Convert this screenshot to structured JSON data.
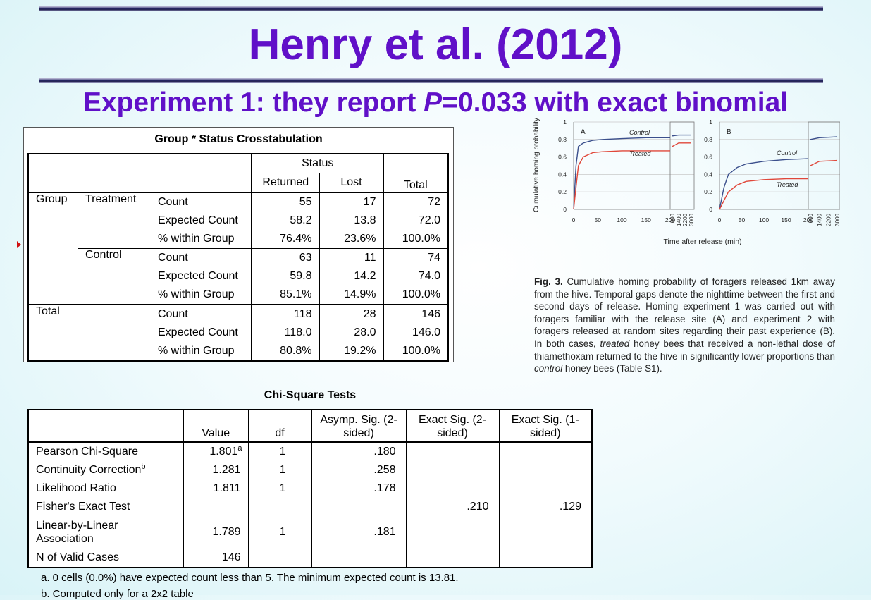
{
  "title": "Henry et al.  (2012)",
  "subtitle": {
    "pre": "Experiment 1: they report  ",
    "p_italic": "P",
    "post": "=0.033 with exact binomial"
  },
  "crosstab": {
    "title": "Group * Status Crosstabulation",
    "status_header": "Status",
    "columns": [
      "Returned",
      "Lost",
      "Total"
    ],
    "group_label": "Group",
    "total_label": "Total",
    "groups": [
      {
        "name": "Treatment",
        "rows": [
          {
            "stat": "Count",
            "values": [
              "55",
              "17",
              "72"
            ]
          },
          {
            "stat": "Expected Count",
            "values": [
              "58.2",
              "13.8",
              "72.0"
            ]
          },
          {
            "stat": "% within Group",
            "values": [
              "76.4%",
              "23.6%",
              "100.0%"
            ]
          }
        ]
      },
      {
        "name": "Control",
        "rows": [
          {
            "stat": "Count",
            "values": [
              "63",
              "11",
              "74"
            ]
          },
          {
            "stat": "Expected Count",
            "values": [
              "59.8",
              "14.2",
              "74.0"
            ]
          },
          {
            "stat": "% within Group",
            "values": [
              "85.1%",
              "14.9%",
              "100.0%"
            ]
          }
        ]
      }
    ],
    "total_rows": [
      {
        "stat": "Count",
        "values": [
          "118",
          "28",
          "146"
        ]
      },
      {
        "stat": "Expected Count",
        "values": [
          "118.0",
          "28.0",
          "146.0"
        ]
      },
      {
        "stat": "% within Group",
        "values": [
          "80.8%",
          "19.2%",
          "100.0%"
        ]
      }
    ]
  },
  "chi_square": {
    "title": "Chi-Square Tests",
    "headers": [
      "",
      "Value",
      "df",
      "Asymp. Sig. (2-sided)",
      "Exact Sig. (2-sided)",
      "Exact Sig. (1-sided)"
    ],
    "rows": [
      {
        "label": "Pearson Chi-Square",
        "sup": "",
        "value": "1.801",
        "value_sup": "a",
        "df": "1",
        "asymp": ".180",
        "exact2": "",
        "exact1": ""
      },
      {
        "label": "Continuity Correction",
        "sup": "b",
        "value": "1.281",
        "value_sup": "",
        "df": "1",
        "asymp": ".258",
        "exact2": "",
        "exact1": ""
      },
      {
        "label": "Likelihood Ratio",
        "sup": "",
        "value": "1.811",
        "value_sup": "",
        "df": "1",
        "asymp": ".178",
        "exact2": "",
        "exact1": ""
      },
      {
        "label": "Fisher's Exact Test",
        "sup": "",
        "value": "",
        "value_sup": "",
        "df": "",
        "asymp": "",
        "exact2": ".210",
        "exact1": ".129"
      },
      {
        "label": "Linear-by-Linear Association",
        "sup": "",
        "value": "1.789",
        "value_sup": "",
        "df": "1",
        "asymp": ".181",
        "exact2": "",
        "exact1": ""
      },
      {
        "label": "N of Valid Cases",
        "sup": "",
        "value": "146",
        "value_sup": "",
        "df": "",
        "asymp": "",
        "exact2": "",
        "exact1": ""
      }
    ],
    "footnote_a": "a. 0 cells (0.0%) have expected count less than 5. The minimum expected count is 13.81.",
    "footnote_b": "b. Computed only for a 2x2 table"
  },
  "figure": {
    "ylabel": "Cumulative homing probability",
    "xlabel": "Time after release (min)",
    "panel_a": "A",
    "panel_b": "B",
    "yticks": [
      "0",
      "0.2",
      "0.4",
      "0.6",
      "0.8",
      "1"
    ],
    "xticks": [
      "0",
      "50",
      "100",
      "150",
      "200"
    ],
    "xticks_late": [
      "600",
      "1400",
      "2200",
      "3000"
    ],
    "legend_control": "Control",
    "legend_treated": "Treated",
    "colors": {
      "control": "#3b4f8c",
      "treated": "#e0473a"
    }
  },
  "chart_data": [
    {
      "type": "line",
      "title": "A",
      "xlabel": "Time after release (min)",
      "ylabel": "Cumulative homing probability",
      "ylim": [
        0,
        1
      ],
      "series": [
        {
          "name": "Control",
          "x": [
            0,
            5,
            10,
            20,
            40,
            60,
            100,
            150,
            200,
            600,
            1400,
            3000
          ],
          "y": [
            0,
            0.5,
            0.72,
            0.76,
            0.79,
            0.8,
            0.81,
            0.82,
            0.82,
            0.84,
            0.85,
            0.85
          ]
        },
        {
          "name": "Treated",
          "x": [
            0,
            5,
            10,
            20,
            40,
            60,
            100,
            150,
            200,
            600,
            1400,
            3000
          ],
          "y": [
            0,
            0.25,
            0.5,
            0.6,
            0.65,
            0.66,
            0.67,
            0.67,
            0.67,
            0.72,
            0.76,
            0.76
          ]
        }
      ]
    },
    {
      "type": "line",
      "title": "B",
      "xlabel": "Time after release (min)",
      "ylabel": "Cumulative homing probability",
      "ylim": [
        0,
        1
      ],
      "series": [
        {
          "name": "Control",
          "x": [
            0,
            10,
            20,
            40,
            60,
            100,
            150,
            200,
            600,
            1400,
            3000
          ],
          "y": [
            0,
            0.25,
            0.4,
            0.48,
            0.52,
            0.55,
            0.57,
            0.58,
            0.8,
            0.82,
            0.83
          ]
        },
        {
          "name": "Treated",
          "x": [
            0,
            10,
            20,
            40,
            60,
            100,
            150,
            200,
            600,
            1400,
            3000
          ],
          "y": [
            0,
            0.1,
            0.2,
            0.28,
            0.32,
            0.34,
            0.35,
            0.35,
            0.5,
            0.55,
            0.56
          ]
        }
      ]
    }
  ],
  "caption": {
    "lead": "Fig. 3.",
    "part1": " Cumulative homing probability of foragers released 1km away from the hive. Temporal gaps denote the nighttime between the first and second days of release. Homing experiment 1 was carried out with foragers familiar with the release site (A) and experiment 2 with foragers released at random sites regarding their past experience (B). In both cases, ",
    "italic1": "treated",
    "part2": " honey bees that received a non-lethal dose of thiamethoxam returned to the hive in significantly lower proportions than ",
    "italic2": "control",
    "part3": " honey bees (Table S1)."
  }
}
